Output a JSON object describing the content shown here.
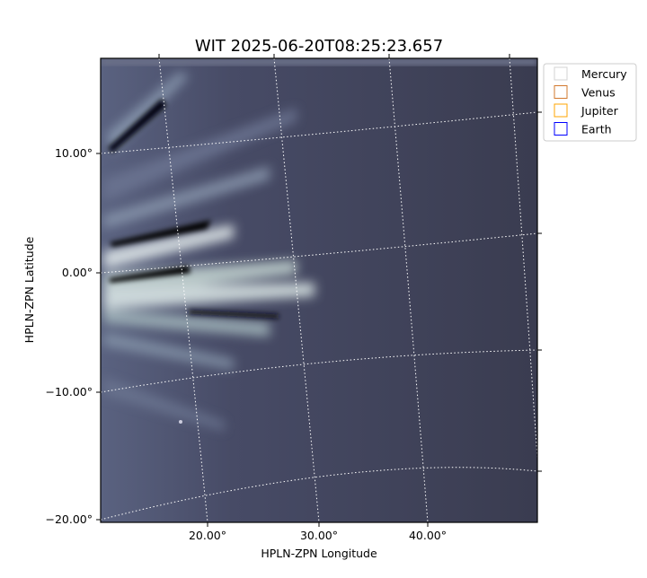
{
  "chart_data": {
    "type": "image",
    "title": "WIT 2025-06-20T08:25:23.657",
    "xlabel": "HPLN-ZPN Longitude",
    "ylabel": "HPLN-ZPN Latitude",
    "xticks": [
      "20.00°",
      "30.00°",
      "40.00°"
    ],
    "yticks": [
      "10.00°",
      "0.00°",
      "−10.00°",
      "−20.00°"
    ],
    "grid": true,
    "colormap": "bone",
    "legend_position": "upper-right-outside",
    "legend": [
      {
        "name": "Mercury",
        "color": "#d3d3d3"
      },
      {
        "name": "Venus",
        "color": "#d2782e"
      },
      {
        "name": "Jupiter",
        "color": "#ffa500"
      },
      {
        "name": "Earth",
        "color": "#0000ff"
      }
    ]
  }
}
